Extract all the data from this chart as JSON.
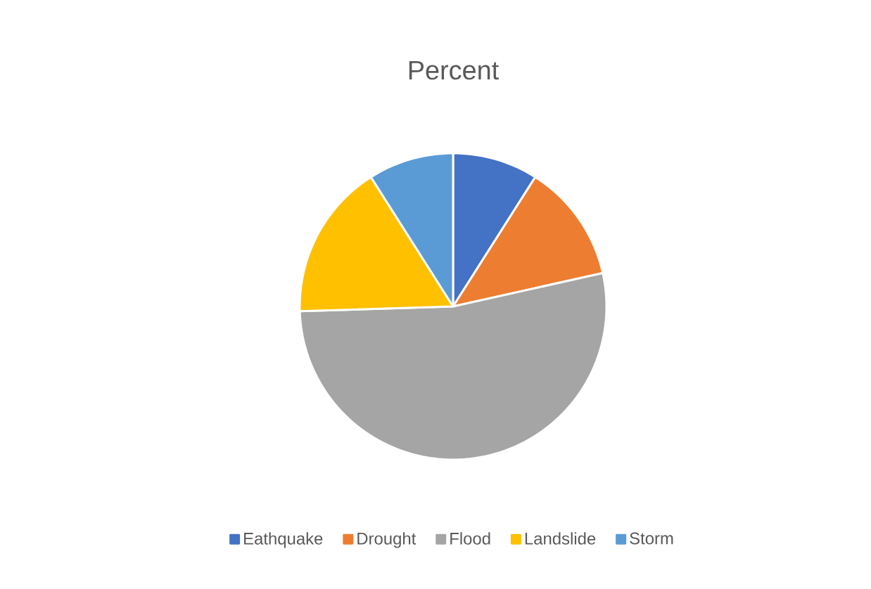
{
  "chart_data": {
    "type": "pie",
    "title": "Percent",
    "categories": [
      "Eathquake",
      "Drought",
      "Flood",
      "Landslide",
      "Storm"
    ],
    "values": [
      9,
      12.5,
      53,
      16.5,
      9
    ],
    "colors": [
      "#4472c4",
      "#ed7d31",
      "#a5a5a5",
      "#ffc000",
      "#5b9bd5"
    ],
    "legend": "bottom"
  }
}
